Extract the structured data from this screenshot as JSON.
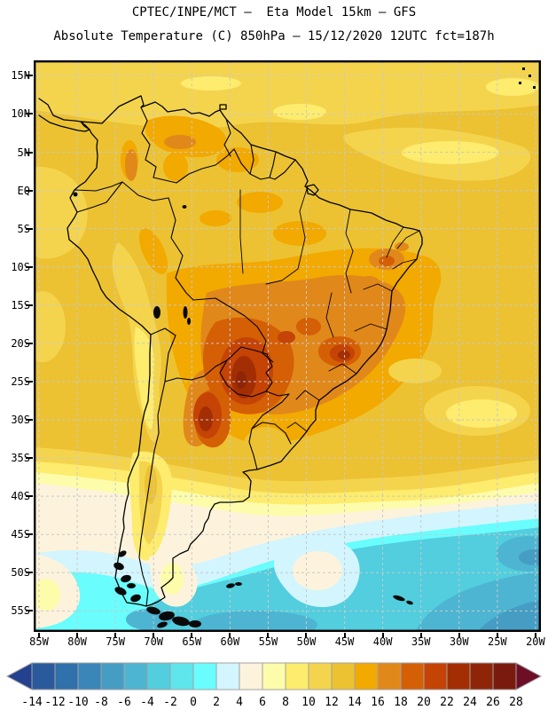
{
  "header": {
    "title_line1": "CPTEC/INPE/MCT –  Eta Model 15km – GFS",
    "title_line2": "Absolute Temperature (C) 850hPa – 15/12/2020 12UTC fct=187h"
  },
  "map": {
    "lat_ticks": [
      "15N",
      "10N",
      "5N",
      "EQ",
      "5S",
      "10S",
      "15S",
      "20S",
      "25S",
      "30S",
      "35S",
      "40S",
      "45S",
      "50S",
      "55S"
    ],
    "lon_ticks": [
      "85W",
      "80W",
      "75W",
      "70W",
      "65W",
      "60W",
      "55W",
      "50W",
      "45W",
      "40W",
      "35W",
      "30W",
      "25W",
      "20W"
    ],
    "grid_color": "#c6c9cd",
    "frame_color": "#000000",
    "coast_color": "#000000"
  },
  "colorbar": {
    "tick_labels": [
      "-14",
      "-12",
      "-10",
      "-8",
      "-6",
      "-4",
      "-2",
      "0",
      "2",
      "4",
      "6",
      "8",
      "10",
      "12",
      "14",
      "16",
      "18",
      "20",
      "22",
      "24",
      "26",
      "28"
    ],
    "cells": [
      "#2a5a9b",
      "#3070ab",
      "#3a86b8",
      "#459dc4",
      "#4db5d2",
      "#52cede",
      "#5fe6ec",
      "#69fdfd",
      "#d3f5fd",
      "#fdf3dc",
      "#fdfcab",
      "#fdec6d",
      "#f5d44d",
      "#ecc232",
      "#f2a900",
      "#e1881a",
      "#d45f05",
      "#c44305",
      "#a32e03",
      "#8f2507",
      "#7a1a0e"
    ],
    "arrow_left": "#23418f",
    "arrow_right": "#6d0e26",
    "cell_border": "#a2a2a2"
  }
}
